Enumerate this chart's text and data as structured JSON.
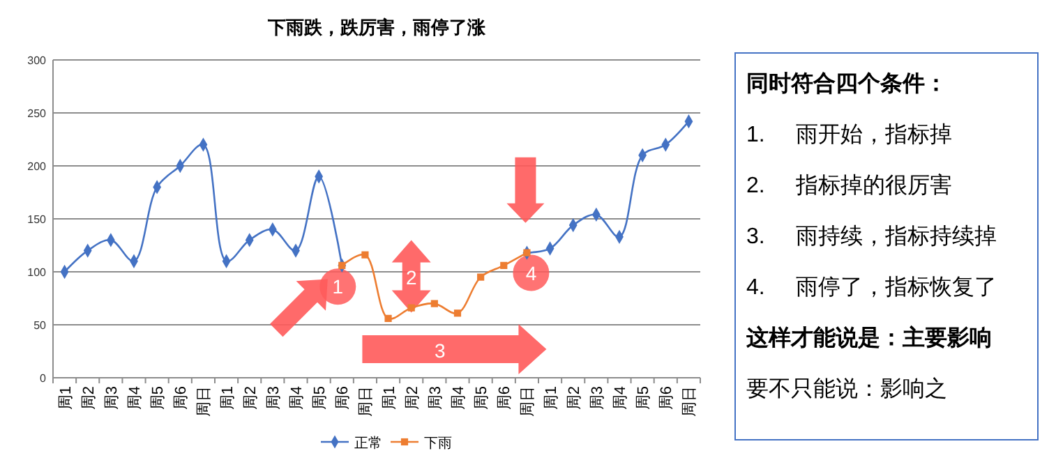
{
  "chart_data": [
    {
      "type": "line",
      "title": "下雨跌，跌厉害，雨停了涨",
      "categories": [
        "周1",
        "周2",
        "周3",
        "周4",
        "周5",
        "周6",
        "周日",
        "周1",
        "周2",
        "周3",
        "周4",
        "周5",
        "周6",
        "周日",
        "周1",
        "周2",
        "周3",
        "周4",
        "周5",
        "周6",
        "周日",
        "周1",
        "周2",
        "周3",
        "周4",
        "周5",
        "周6",
        "周日"
      ],
      "series": [
        {
          "name": "正常",
          "color": "#4472c4",
          "marker": "diamond",
          "values": [
            100,
            120,
            130,
            110,
            180,
            200,
            220,
            110,
            130,
            140,
            120,
            190,
            106,
            null,
            null,
            null,
            null,
            null,
            null,
            null,
            118,
            122,
            144,
            154,
            133,
            210,
            220,
            242
          ]
        },
        {
          "name": "下雨",
          "color": "#ed7d31",
          "marker": "square",
          "values": [
            null,
            null,
            null,
            null,
            null,
            null,
            null,
            null,
            null,
            null,
            null,
            null,
            106,
            116,
            56,
            66,
            70,
            61,
            95,
            106,
            118,
            null,
            null,
            null,
            null,
            null,
            null,
            null
          ]
        }
      ],
      "ylim": [
        0,
        300
      ],
      "yticks": [
        0,
        50,
        100,
        150,
        200,
        250,
        300
      ],
      "grid": "y",
      "legend": "bottom",
      "annotations": [
        "1",
        "2",
        "3",
        "4"
      ]
    },
    {
      "type": "other",
      "title": "同时符合四个条件：",
      "subtitle": "这样才能说是：主要影响",
      "annotations": [
        "1. 雨开始，指标掉",
        "2. 指标掉的很厉害",
        "3. 雨持续，指标持续掉",
        "4. 雨停了，指标恢复了",
        "要不只能说：影响之"
      ]
    }
  ]
}
